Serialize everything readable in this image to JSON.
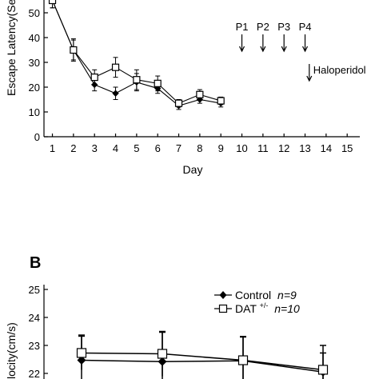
{
  "chart_data": [
    {
      "type": "line",
      "title": "",
      "xlabel": "Day",
      "ylabel": "Escape Latency(Sec)",
      "xlim": [
        0.6,
        15.6
      ],
      "ylim": [
        0,
        50
      ],
      "x_ticks": [
        "1",
        "2",
        "3",
        "4",
        "5",
        "6",
        "7",
        "8",
        "9",
        "10",
        "11",
        "12",
        "13",
        "14",
        "15"
      ],
      "y_ticks": [
        "0",
        "10",
        "20",
        "30",
        "40",
        "50"
      ],
      "grid": false,
      "series": [
        {
          "name": "Control",
          "marker": "filled-diamond",
          "color": "#000000",
          "x": [
            1,
            2,
            3,
            4,
            5,
            6,
            7,
            8,
            9
          ],
          "values": [
            55,
            35,
            21,
            17.5,
            22,
            19.5,
            12.5,
            15,
            13.5
          ],
          "errors": [
            3,
            4,
            2.5,
            2.5,
            3.5,
            2,
            1.5,
            1.5,
            1.5
          ]
        },
        {
          "name": "DAT+/-",
          "marker": "open-square",
          "color": "#000000",
          "x": [
            1,
            2,
            3,
            4,
            5,
            6,
            7,
            8,
            9
          ],
          "values": [
            55,
            35,
            24,
            28,
            23,
            21.5,
            13.5,
            17,
            14.5
          ],
          "errors": [
            3,
            4.5,
            3,
            4,
            4,
            3,
            1.5,
            2,
            1.5
          ]
        }
      ],
      "annotations": [
        {
          "label": "P1",
          "x": 10,
          "arrow": "down"
        },
        {
          "label": "P2",
          "x": 11,
          "arrow": "down"
        },
        {
          "label": "P3",
          "x": 12,
          "arrow": "down"
        },
        {
          "label": "P4",
          "x": 13,
          "arrow": "down"
        },
        {
          "label": "Haloperidol",
          "x": 13.2,
          "arrow": "down"
        }
      ]
    },
    {
      "type": "line",
      "panel_label": "B",
      "title": "",
      "xlabel": "",
      "ylabel": "Velocity(cm/s)",
      "ylabel_visible": "locity(cm/s)",
      "ylim": [
        22,
        25
      ],
      "y_ticks": [
        "22",
        "23",
        "24",
        "25"
      ],
      "legend_position": "top-right",
      "series": [
        {
          "name": "Control",
          "legend_label": "Control",
          "legend_n": "n=9",
          "marker": "filled-diamond",
          "color": "#000000",
          "x": [
            1,
            2,
            3,
            4
          ],
          "values": [
            22.47,
            22.42,
            22.45,
            22.05
          ],
          "errors": [
            0.9,
            1.05,
            0.85,
            0.95
          ]
        },
        {
          "name": "DAT+/-",
          "legend_label": "DAT",
          "legend_sup": "+/-",
          "legend_n": "n=10",
          "marker": "open-square",
          "color": "#000000",
          "x": [
            1,
            2,
            3,
            4
          ],
          "values": [
            22.73,
            22.7,
            22.47,
            22.13
          ],
          "errors": [
            0.6,
            0.8,
            0.85,
            0.6
          ]
        }
      ]
    }
  ]
}
